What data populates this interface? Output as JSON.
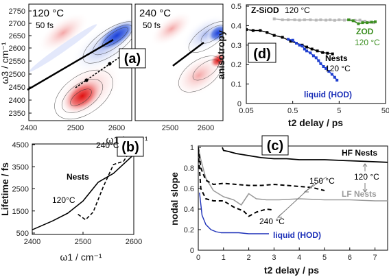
{
  "colors": {
    "blue": "#1f3fd0",
    "red": "#d21f1f",
    "gray": "#9a9a9a",
    "light_gray": "#b8b8b8",
    "green": "#3a8e1f",
    "black": "#000000",
    "dark_blue_line": "#1b2fb8"
  },
  "panels": {
    "a_left_text": {
      "temp": "120 °C",
      "time": "50 fs"
    },
    "a_right_text": {
      "temp": "240 °C",
      "time": "50 fs"
    },
    "a_label": "(a)",
    "b_label": "(b)",
    "c_label": "(c)",
    "d_label": "(d)"
  },
  "chart_data": [
    {
      "id": "a",
      "type": "heatmap",
      "xlabel": "ω1 / cm⁻¹",
      "ylabel": "ω3 / cm⁻¹",
      "x_ticks": [
        "2400",
        "2500",
        "2600",
        "2500",
        "2600"
      ],
      "y_ticks": [
        "2750",
        "2700",
        "2650",
        "2600",
        "2550",
        "2500",
        "2450",
        "2400",
        "2350"
      ],
      "subplots": [
        {
          "name": "120 °C",
          "xlim": [
            2400,
            2640
          ],
          "ylim": [
            2340,
            2770
          ]
        },
        {
          "name": "240 °C",
          "xlim": [
            2440,
            2640
          ],
          "ylim": [
            2340,
            2770
          ]
        }
      ]
    },
    {
      "id": "b",
      "type": "line",
      "xlabel": "ω1 / cm⁻¹",
      "ylabel": "Lifetime / fs",
      "xlim": [
        2400,
        2600
      ],
      "ylim": [
        500,
        4500
      ],
      "x_ticks": [
        "2400",
        "2500",
        "2600"
      ],
      "y_ticks": [
        "4500",
        "3500",
        "2500",
        "1500",
        "500"
      ],
      "annotations": {
        "nests": "Nests",
        "t120": "120°C",
        "t240": "240°C"
      },
      "series": [
        {
          "name": "120°C",
          "style": "solid",
          "x": [
            2400,
            2440,
            2470,
            2500,
            2530,
            2560,
            2600
          ],
          "y": [
            650,
            1050,
            1400,
            1950,
            2800,
            3200,
            4050
          ]
        },
        {
          "name": "240°C",
          "style": "dashed",
          "x": [
            2490,
            2505,
            2520,
            2540,
            2560,
            2580,
            2595
          ],
          "y": [
            1350,
            1100,
            1450,
            2600,
            3600,
            3750,
            4300
          ]
        }
      ]
    },
    {
      "id": "c",
      "type": "line",
      "xlabel": "t2 delay / ps",
      "ylabel": "nodal slope",
      "xlim": [
        0,
        7.5
      ],
      "ylim": [
        0,
        1
      ],
      "x_ticks": [
        "0",
        "1",
        "2",
        "3",
        "4",
        "5",
        "6",
        "7"
      ],
      "y_ticks": [
        "1",
        "0.8",
        "0.6",
        "0.4",
        "0.2",
        "0"
      ],
      "annotations": {
        "hf": "HF Nests",
        "lf": "LF Nests",
        "t150": "150 °C",
        "t240": "240 °C",
        "t120": "120 °C",
        "liquid": "liquid (HOD)"
      },
      "series": [
        {
          "name": "HF Nests",
          "style": "solid",
          "x": [
            0.95,
            1.0,
            1.2,
            1.5,
            2,
            2.5,
            3,
            3.5,
            4,
            5,
            6,
            7,
            7.5
          ],
          "y": [
            1.0,
            0.97,
            0.96,
            0.94,
            0.92,
            0.9,
            0.89,
            0.89,
            0.88,
            0.88,
            0.87,
            0.86,
            0.855
          ]
        },
        {
          "name": "LF Nests",
          "style": "solid",
          "x": [
            0,
            0.1,
            0.3,
            0.6,
            1.0,
            1.4,
            1.7,
            2.0,
            2.3,
            2.7,
            3.2,
            4,
            5,
            6,
            7,
            7.5
          ],
          "y": [
            1.0,
            0.88,
            0.7,
            0.58,
            0.52,
            0.49,
            0.44,
            0.55,
            0.5,
            0.49,
            0.49,
            0.5,
            0.49,
            0.49,
            0.48,
            0.48
          ]
        },
        {
          "name": "150 °C",
          "style": "dashed",
          "x": [
            0,
            0.1,
            0.3,
            0.6,
            1.0,
            1.5,
            2.0,
            2.5,
            3.0,
            3.5,
            4.0,
            4.5,
            5.0
          ],
          "y": [
            1.0,
            0.8,
            0.68,
            0.64,
            0.65,
            0.64,
            0.63,
            0.63,
            0.64,
            0.63,
            0.62,
            0.61,
            0.58
          ]
        },
        {
          "name": "240 °C",
          "style": "dashed",
          "x": [
            0,
            0.1,
            0.3,
            0.6,
            1.0,
            1.4,
            1.8,
            2.0,
            2.3,
            2.7,
            3.0
          ],
          "y": [
            0.96,
            0.6,
            0.5,
            0.48,
            0.48,
            0.42,
            0.38,
            0.33,
            0.37,
            0.4,
            0.39
          ]
        },
        {
          "name": "liquid (HOD)",
          "style": "solid",
          "x": [
            0.05,
            0.15,
            0.3,
            0.5,
            0.7,
            0.9,
            1.2,
            1.6,
            2.0,
            2.4,
            2.8
          ],
          "y": [
            0.56,
            0.34,
            0.25,
            0.2,
            0.18,
            0.17,
            0.17,
            0.17,
            0.16,
            0.16,
            0.16
          ]
        }
      ]
    },
    {
      "id": "d",
      "type": "line",
      "xlabel": "t2 delay / ps",
      "ylabel": "anisotropy",
      "xscale": "log",
      "xlim": [
        0.05,
        50
      ],
      "ylim": [
        0.0,
        0.5
      ],
      "x_ticks": [
        "0.05",
        "0.5",
        "5",
        "50"
      ],
      "y_ticks": [
        "0.5",
        "0.4",
        "0.3",
        "0.2",
        "0.1",
        "0"
      ],
      "annotations": {
        "zsiod": "Z-SiOD",
        "zsiod_temp": "120 °C",
        "zod": "ZOD",
        "zod_temp": "120 °C",
        "nests": "Nests",
        "nests_temp": "120 °C",
        "liquid": "liquid (HOD)"
      },
      "series": [
        {
          "name": "Z-SiOD",
          "x": [
            0.2,
            0.3,
            0.4,
            0.55,
            0.7,
            0.9,
            1.2,
            1.6,
            2.0,
            2.6,
            3.2,
            4.0,
            5.0,
            6.5,
            8.5,
            11,
            14,
            18,
            23,
            28
          ],
          "y": [
            0.435,
            0.43,
            0.43,
            0.43,
            0.428,
            0.43,
            0.43,
            0.428,
            0.43,
            0.428,
            0.43,
            0.427,
            0.43,
            0.428,
            0.43,
            0.427,
            0.428,
            0.423,
            0.418,
            0.415
          ]
        },
        {
          "name": "ZOD",
          "x": [
            8,
            10,
            13,
            16,
            20,
            25,
            30
          ],
          "y": [
            0.43,
            0.425,
            0.41,
            0.415,
            0.415,
            0.418,
            0.42
          ]
        },
        {
          "name": "Nests",
          "x": [
            0.05,
            0.07,
            0.1,
            0.14,
            0.2,
            0.3,
            0.45,
            0.6,
            0.8,
            1.0,
            1.3,
            1.7,
            2.2,
            2.8,
            3.6
          ],
          "y": [
            0.38,
            0.375,
            0.375,
            0.365,
            0.35,
            0.34,
            0.32,
            0.31,
            0.3,
            0.29,
            0.28,
            0.27,
            0.262,
            0.258,
            0.255
          ]
        },
        {
          "name": "liquid (HOD)",
          "x": [
            0.4,
            0.5,
            0.6,
            0.7,
            0.8,
            0.9,
            1.0,
            1.2,
            1.4,
            1.6,
            1.8,
            2.0,
            2.3,
            2.6,
            3.0,
            3.5,
            4.0,
            4.5
          ],
          "y": [
            0.33,
            0.325,
            0.31,
            0.3,
            0.295,
            0.28,
            0.27,
            0.26,
            0.245,
            0.235,
            0.22,
            0.205,
            0.19,
            0.18,
            0.165,
            0.15,
            0.135,
            0.12
          ]
        }
      ]
    }
  ]
}
